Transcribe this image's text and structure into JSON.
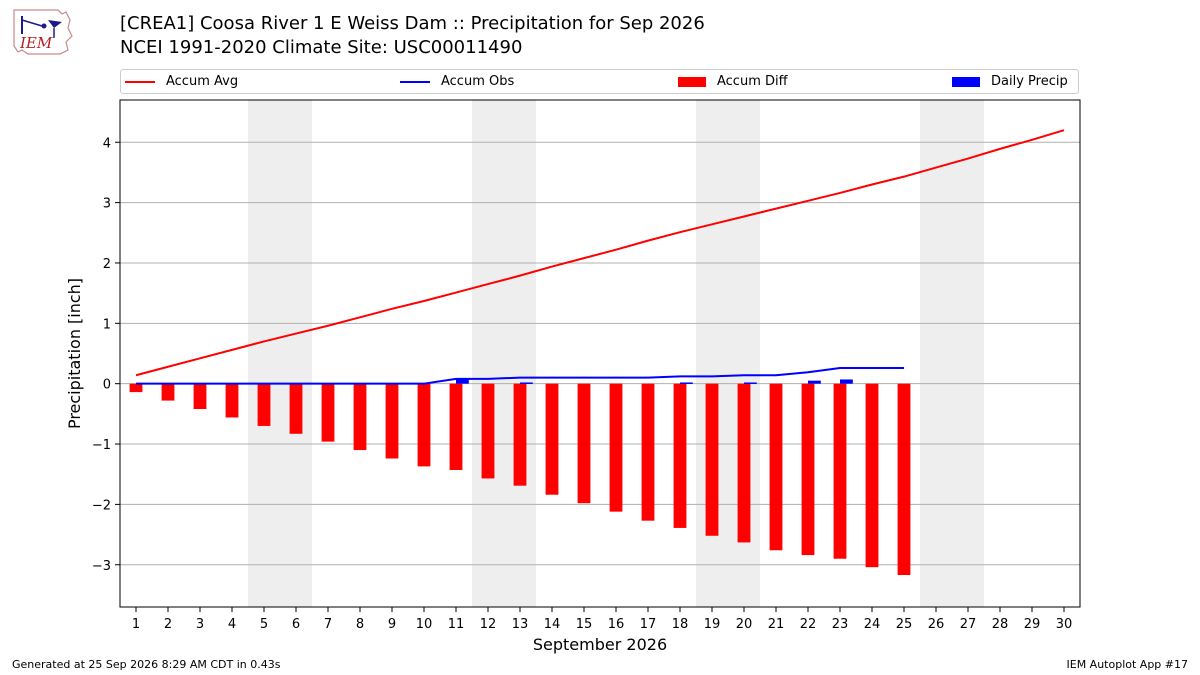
{
  "logo": {
    "text": "IEM"
  },
  "header": {
    "title": "[CREA1] Coosa River 1 E Weiss Dam :: Precipitation for Sep 2026",
    "subtitle": "NCEI 1991-2020 Climate Site: USC00011490"
  },
  "legend": {
    "items": [
      {
        "label": "Accum Avg",
        "kind": "line",
        "color": "#ff0000"
      },
      {
        "label": "Accum Obs",
        "kind": "line",
        "color": "#0000ff"
      },
      {
        "label": "Accum Diff",
        "kind": "box",
        "color": "#ff0000"
      },
      {
        "label": "Daily Precip",
        "kind": "box",
        "color": "#0000ff"
      }
    ]
  },
  "chart_data": {
    "type": "bar",
    "title": "[CREA1] Coosa River 1 E Weiss Dam :: Precipitation for Sep 2026",
    "xlabel": "September 2026",
    "ylabel": "Precipitation [inch]",
    "xlim": [
      0.5,
      30.5
    ],
    "ylim": [
      -3.7,
      4.7
    ],
    "x_ticks": [
      1,
      2,
      3,
      4,
      5,
      6,
      7,
      8,
      9,
      10,
      11,
      12,
      13,
      14,
      15,
      16,
      17,
      18,
      19,
      20,
      21,
      22,
      23,
      24,
      25,
      26,
      27,
      28,
      29,
      30
    ],
    "y_ticks": [
      -3,
      -2,
      -1,
      0,
      1,
      2,
      3,
      4
    ],
    "y_tick_labels": [
      "−3",
      "−2",
      "−1",
      "0",
      "1",
      "2",
      "3",
      "4"
    ],
    "grid": "horizontal",
    "weekend_shading": [
      [
        5,
        6
      ],
      [
        12,
        13
      ],
      [
        19,
        20
      ],
      [
        26,
        27
      ]
    ],
    "series": [
      {
        "name": "Accum Avg",
        "type": "line",
        "color": "#ff0000",
        "x": [
          1,
          2,
          3,
          4,
          5,
          6,
          7,
          8,
          9,
          10,
          11,
          12,
          13,
          14,
          15,
          16,
          17,
          18,
          19,
          20,
          21,
          22,
          23,
          24,
          25,
          26,
          27,
          28,
          29,
          30
        ],
        "values": [
          0.14,
          0.28,
          0.42,
          0.56,
          0.7,
          0.83,
          0.96,
          1.1,
          1.24,
          1.37,
          1.51,
          1.65,
          1.79,
          1.94,
          2.08,
          2.22,
          2.37,
          2.51,
          2.64,
          2.77,
          2.9,
          3.03,
          3.16,
          3.3,
          3.43,
          3.58,
          3.73,
          3.89,
          4.04,
          4.2
        ]
      },
      {
        "name": "Accum Obs",
        "type": "line",
        "color": "#0000ff",
        "x": [
          1,
          2,
          3,
          4,
          5,
          6,
          7,
          8,
          9,
          10,
          11,
          12,
          13,
          14,
          15,
          16,
          17,
          18,
          19,
          20,
          21,
          22,
          23,
          24,
          25
        ],
        "values": [
          0,
          0,
          0,
          0,
          0,
          0,
          0,
          0,
          0,
          0,
          0.08,
          0.08,
          0.1,
          0.1,
          0.1,
          0.1,
          0.1,
          0.12,
          0.12,
          0.14,
          0.14,
          0.19,
          0.26,
          0.26,
          0.26
        ]
      },
      {
        "name": "Accum Diff",
        "type": "bar",
        "color": "#ff0000",
        "x": [
          1,
          2,
          3,
          4,
          5,
          6,
          7,
          8,
          9,
          10,
          11,
          12,
          13,
          14,
          15,
          16,
          17,
          18,
          19,
          20,
          21,
          22,
          23,
          24,
          25
        ],
        "values": [
          -0.14,
          -0.28,
          -0.42,
          -0.56,
          -0.7,
          -0.83,
          -0.96,
          -1.1,
          -1.24,
          -1.37,
          -1.43,
          -1.57,
          -1.69,
          -1.84,
          -1.98,
          -2.12,
          -2.27,
          -2.39,
          -2.52,
          -2.63,
          -2.76,
          -2.84,
          -2.9,
          -3.04,
          -3.17
        ]
      },
      {
        "name": "Daily Precip",
        "type": "bar",
        "color": "#0000ff",
        "x": [
          11,
          13,
          18,
          20,
          22,
          23
        ],
        "values": [
          0.08,
          0.02,
          0.02,
          0.02,
          0.05,
          0.07
        ]
      }
    ]
  },
  "footer": {
    "left": "Generated at 25 Sep 2026 8:29 AM CDT in 0.43s",
    "right": "IEM Autoplot App #17"
  }
}
